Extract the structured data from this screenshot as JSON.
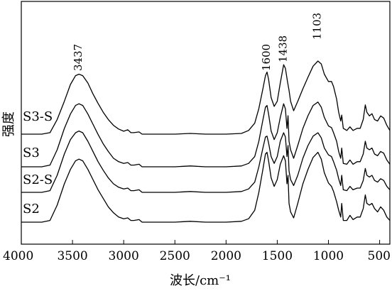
{
  "chart_data": {
    "type": "line",
    "title": "",
    "xlabel": "波长/cm⁻¹",
    "ylabel": "强度",
    "xlim": [
      4000,
      400
    ],
    "x_reversed": true,
    "x_ticks": [
      4000,
      3500,
      3000,
      2500,
      2000,
      1500,
      1000,
      500
    ],
    "y_ticks_shown": false,
    "grid": false,
    "legend": "none",
    "peak_labels": [
      "3437",
      "1600",
      "1438",
      "1103"
    ],
    "peak_positions": [
      3437,
      1600,
      1438,
      1103
    ],
    "series": [
      {
        "name": "S3-S",
        "offset": 3,
        "points": [
          [
            4000,
            0.0
          ],
          [
            3800,
            0.0
          ],
          [
            3720,
            0.02
          ],
          [
            3650,
            0.2
          ],
          [
            3580,
            0.45
          ],
          [
            3520,
            0.68
          ],
          [
            3470,
            0.8
          ],
          [
            3437,
            0.82
          ],
          [
            3400,
            0.8
          ],
          [
            3350,
            0.7
          ],
          [
            3300,
            0.55
          ],
          [
            3250,
            0.42
          ],
          [
            3200,
            0.3
          ],
          [
            3150,
            0.2
          ],
          [
            3100,
            0.12
          ],
          [
            3050,
            0.07
          ],
          [
            3000,
            0.04
          ],
          [
            2960,
            0.06
          ],
          [
            2930,
            0.02
          ],
          [
            2900,
            0.02
          ],
          [
            2850,
            0.03
          ],
          [
            2820,
            0.0
          ],
          [
            2700,
            0.0
          ],
          [
            2500,
            0.0
          ],
          [
            2350,
            0.01
          ],
          [
            2200,
            0.0
          ],
          [
            2000,
            0.0
          ],
          [
            1850,
            0.01
          ],
          [
            1780,
            0.05
          ],
          [
            1720,
            0.15
          ],
          [
            1680,
            0.35
          ],
          [
            1640,
            0.62
          ],
          [
            1615,
            0.8
          ],
          [
            1600,
            0.85
          ],
          [
            1585,
            0.75
          ],
          [
            1560,
            0.5
          ],
          [
            1530,
            0.38
          ],
          [
            1500,
            0.45
          ],
          [
            1470,
            0.7
          ],
          [
            1438,
            0.95
          ],
          [
            1420,
            0.9
          ],
          [
            1400,
            0.72
          ],
          [
            1385,
            0.6
          ],
          [
            1370,
            0.45
          ],
          [
            1340,
            0.32
          ],
          [
            1300,
            0.45
          ],
          [
            1250,
            0.62
          ],
          [
            1200,
            0.78
          ],
          [
            1150,
            0.93
          ],
          [
            1103,
            1.0
          ],
          [
            1070,
            0.96
          ],
          [
            1040,
            0.82
          ],
          [
            1000,
            0.72
          ],
          [
            970,
            0.72
          ],
          [
            950,
            0.65
          ],
          [
            920,
            0.48
          ],
          [
            900,
            0.3
          ],
          [
            880,
            0.18
          ],
          [
            870,
            0.26
          ],
          [
            855,
            0.08
          ],
          [
            820,
            0.05
          ],
          [
            790,
            0.1
          ],
          [
            760,
            0.05
          ],
          [
            720,
            0.08
          ],
          [
            690,
            0.08
          ],
          [
            660,
            0.2
          ],
          [
            640,
            0.4
          ],
          [
            625,
            0.3
          ],
          [
            600,
            0.25
          ],
          [
            575,
            0.28
          ],
          [
            550,
            0.2
          ],
          [
            520,
            0.18
          ],
          [
            490,
            0.25
          ],
          [
            460,
            0.22
          ],
          [
            430,
            0.12
          ],
          [
            400,
            0.05
          ]
        ]
      },
      {
        "name": "S3",
        "offset": 2,
        "points": [
          [
            4000,
            0.0
          ],
          [
            3800,
            0.0
          ],
          [
            3720,
            0.02
          ],
          [
            3650,
            0.2
          ],
          [
            3580,
            0.45
          ],
          [
            3520,
            0.62
          ],
          [
            3470,
            0.72
          ],
          [
            3437,
            0.74
          ],
          [
            3400,
            0.72
          ],
          [
            3350,
            0.62
          ],
          [
            3300,
            0.5
          ],
          [
            3250,
            0.38
          ],
          [
            3200,
            0.27
          ],
          [
            3150,
            0.18
          ],
          [
            3100,
            0.1
          ],
          [
            3050,
            0.06
          ],
          [
            3000,
            0.04
          ],
          [
            2960,
            0.05
          ],
          [
            2930,
            0.02
          ],
          [
            2900,
            0.02
          ],
          [
            2850,
            0.03
          ],
          [
            2820,
            0.0
          ],
          [
            2700,
            0.0
          ],
          [
            2500,
            0.0
          ],
          [
            2350,
            0.01
          ],
          [
            2200,
            0.0
          ],
          [
            2000,
            0.0
          ],
          [
            1850,
            0.01
          ],
          [
            1780,
            0.04
          ],
          [
            1720,
            0.12
          ],
          [
            1680,
            0.3
          ],
          [
            1640,
            0.55
          ],
          [
            1615,
            0.7
          ],
          [
            1600,
            0.72
          ],
          [
            1585,
            0.62
          ],
          [
            1560,
            0.42
          ],
          [
            1530,
            0.32
          ],
          [
            1500,
            0.4
          ],
          [
            1470,
            0.58
          ],
          [
            1438,
            0.74
          ],
          [
            1420,
            0.68
          ],
          [
            1405,
            0.45
          ],
          [
            1395,
            0.6
          ],
          [
            1385,
            0.3
          ],
          [
            1370,
            0.2
          ],
          [
            1340,
            0.1
          ],
          [
            1300,
            0.25
          ],
          [
            1250,
            0.45
          ],
          [
            1200,
            0.6
          ],
          [
            1150,
            0.72
          ],
          [
            1103,
            0.76
          ],
          [
            1070,
            0.7
          ],
          [
            1040,
            0.58
          ],
          [
            1000,
            0.48
          ],
          [
            970,
            0.46
          ],
          [
            950,
            0.4
          ],
          [
            920,
            0.3
          ],
          [
            900,
            0.18
          ],
          [
            880,
            0.1
          ],
          [
            870,
            0.22
          ],
          [
            855,
            0.04
          ],
          [
            820,
            0.03
          ],
          [
            790,
            0.08
          ],
          [
            760,
            0.03
          ],
          [
            720,
            0.06
          ],
          [
            690,
            0.06
          ],
          [
            660,
            0.15
          ],
          [
            640,
            0.3
          ],
          [
            625,
            0.22
          ],
          [
            600,
            0.2
          ],
          [
            575,
            0.22
          ],
          [
            550,
            0.15
          ],
          [
            520,
            0.13
          ],
          [
            490,
            0.18
          ],
          [
            460,
            0.16
          ],
          [
            430,
            0.08
          ],
          [
            400,
            0.03
          ]
        ]
      },
      {
        "name": "S2-S",
        "offset": 1,
        "points": [
          [
            4000,
            0.0
          ],
          [
            3800,
            0.0
          ],
          [
            3720,
            0.02
          ],
          [
            3650,
            0.2
          ],
          [
            3580,
            0.45
          ],
          [
            3520,
            0.62
          ],
          [
            3470,
            0.7
          ],
          [
            3437,
            0.72
          ],
          [
            3400,
            0.7
          ],
          [
            3350,
            0.6
          ],
          [
            3300,
            0.48
          ],
          [
            3250,
            0.36
          ],
          [
            3200,
            0.26
          ],
          [
            3150,
            0.17
          ],
          [
            3100,
            0.1
          ],
          [
            3050,
            0.06
          ],
          [
            3000,
            0.04
          ],
          [
            2960,
            0.05
          ],
          [
            2930,
            0.02
          ],
          [
            2900,
            0.02
          ],
          [
            2850,
            0.03
          ],
          [
            2820,
            0.0
          ],
          [
            2700,
            0.0
          ],
          [
            2500,
            0.0
          ],
          [
            2350,
            0.01
          ],
          [
            2200,
            0.0
          ],
          [
            2000,
            0.0
          ],
          [
            1850,
            0.01
          ],
          [
            1780,
            0.04
          ],
          [
            1720,
            0.12
          ],
          [
            1680,
            0.3
          ],
          [
            1640,
            0.52
          ],
          [
            1615,
            0.65
          ],
          [
            1600,
            0.66
          ],
          [
            1585,
            0.58
          ],
          [
            1560,
            0.42
          ],
          [
            1530,
            0.34
          ],
          [
            1500,
            0.42
          ],
          [
            1470,
            0.6
          ],
          [
            1438,
            0.7
          ],
          [
            1420,
            0.65
          ],
          [
            1405,
            0.42
          ],
          [
            1395,
            0.55
          ],
          [
            1385,
            0.25
          ],
          [
            1370,
            0.15
          ],
          [
            1340,
            0.08
          ],
          [
            1300,
            0.2
          ],
          [
            1250,
            0.4
          ],
          [
            1200,
            0.55
          ],
          [
            1150,
            0.66
          ],
          [
            1103,
            0.7
          ],
          [
            1070,
            0.64
          ],
          [
            1040,
            0.52
          ],
          [
            1000,
            0.44
          ],
          [
            970,
            0.42
          ],
          [
            950,
            0.36
          ],
          [
            920,
            0.26
          ],
          [
            900,
            0.16
          ],
          [
            880,
            0.08
          ],
          [
            870,
            0.2
          ],
          [
            855,
            0.03
          ],
          [
            820,
            0.02
          ],
          [
            790,
            0.07
          ],
          [
            760,
            0.03
          ],
          [
            720,
            0.05
          ],
          [
            690,
            0.05
          ],
          [
            660,
            0.14
          ],
          [
            640,
            0.28
          ],
          [
            625,
            0.2
          ],
          [
            600,
            0.18
          ],
          [
            575,
            0.2
          ],
          [
            550,
            0.14
          ],
          [
            520,
            0.12
          ],
          [
            490,
            0.16
          ],
          [
            460,
            0.14
          ],
          [
            430,
            0.07
          ],
          [
            400,
            0.03
          ]
        ]
      },
      {
        "name": "S2",
        "offset": 0,
        "points": [
          [
            4000,
            0.0
          ],
          [
            3800,
            0.0
          ],
          [
            3720,
            0.02
          ],
          [
            3650,
            0.2
          ],
          [
            3580,
            0.45
          ],
          [
            3520,
            0.62
          ],
          [
            3470,
            0.72
          ],
          [
            3437,
            0.74
          ],
          [
            3400,
            0.72
          ],
          [
            3350,
            0.62
          ],
          [
            3300,
            0.5
          ],
          [
            3250,
            0.38
          ],
          [
            3200,
            0.28
          ],
          [
            3150,
            0.18
          ],
          [
            3100,
            0.11
          ],
          [
            3050,
            0.06
          ],
          [
            3000,
            0.04
          ],
          [
            2960,
            0.05
          ],
          [
            2930,
            0.02
          ],
          [
            2900,
            0.02
          ],
          [
            2850,
            0.03
          ],
          [
            2820,
            0.0
          ],
          [
            2700,
            0.0
          ],
          [
            2500,
            0.0
          ],
          [
            2350,
            0.01
          ],
          [
            2200,
            0.0
          ],
          [
            2000,
            0.0
          ],
          [
            1850,
            0.01
          ],
          [
            1780,
            0.04
          ],
          [
            1720,
            0.14
          ],
          [
            1680,
            0.35
          ],
          [
            1640,
            0.62
          ],
          [
            1615,
            0.8
          ],
          [
            1600,
            0.82
          ],
          [
            1585,
            0.72
          ],
          [
            1560,
            0.52
          ],
          [
            1530,
            0.42
          ],
          [
            1500,
            0.5
          ],
          [
            1470,
            0.68
          ],
          [
            1438,
            0.78
          ],
          [
            1420,
            0.72
          ],
          [
            1405,
            0.45
          ],
          [
            1395,
            0.55
          ],
          [
            1385,
            0.22
          ],
          [
            1370,
            0.12
          ],
          [
            1340,
            0.05
          ],
          [
            1300,
            0.22
          ],
          [
            1250,
            0.45
          ],
          [
            1200,
            0.62
          ],
          [
            1150,
            0.76
          ],
          [
            1103,
            0.82
          ],
          [
            1070,
            0.74
          ],
          [
            1040,
            0.58
          ],
          [
            1000,
            0.46
          ],
          [
            970,
            0.42
          ],
          [
            950,
            0.36
          ],
          [
            920,
            0.24
          ],
          [
            900,
            0.14
          ],
          [
            880,
            0.06
          ],
          [
            870,
            0.22
          ],
          [
            855,
            0.02
          ],
          [
            820,
            0.02
          ],
          [
            790,
            0.08
          ],
          [
            760,
            0.03
          ],
          [
            720,
            0.06
          ],
          [
            690,
            0.06
          ],
          [
            660,
            0.16
          ],
          [
            640,
            0.32
          ],
          [
            625,
            0.22
          ],
          [
            600,
            0.2
          ],
          [
            575,
            0.22
          ],
          [
            550,
            0.16
          ],
          [
            520,
            0.12
          ],
          [
            490,
            0.18
          ],
          [
            460,
            0.14
          ],
          [
            430,
            0.06
          ],
          [
            400,
            0.02
          ]
        ]
      }
    ]
  }
}
